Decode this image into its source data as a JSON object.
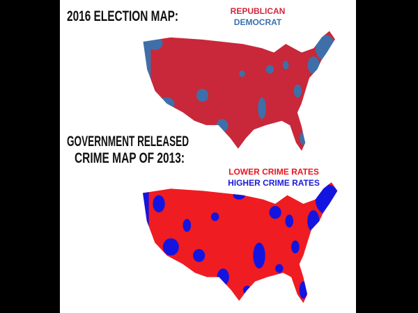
{
  "election_map": {
    "title": "2016 ELECTION MAP:",
    "legend": [
      "REPUBLICAN",
      "DEMOCRAT"
    ]
  },
  "crime_map": {
    "title_lines": [
      "GOVERNMENT RELEASED",
      "CRIME MAP OF 2013:"
    ],
    "legend": [
      "LOWER CRIME RATES",
      "HIGHER CRIME RATES"
    ]
  }
}
